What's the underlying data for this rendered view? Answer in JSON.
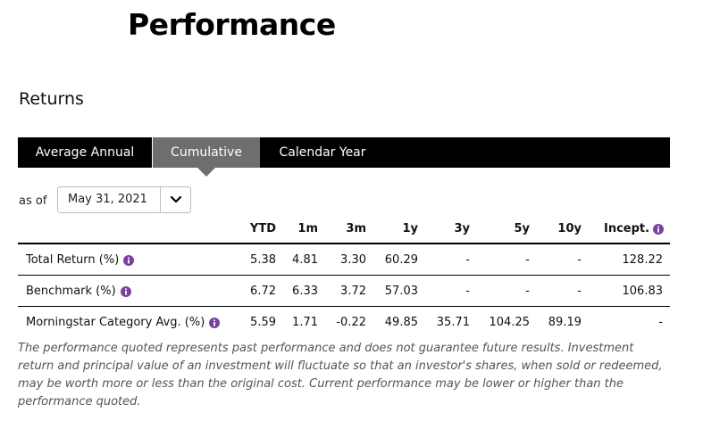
{
  "page": {
    "title": "Performance"
  },
  "section": {
    "title": "Returns"
  },
  "tabs": [
    {
      "label": "Average Annual",
      "active": false
    },
    {
      "label": "Cumulative",
      "active": true
    },
    {
      "label": "Calendar Year",
      "active": false
    }
  ],
  "as_of": {
    "label": "as of",
    "selected": "May 31, 2021",
    "icon": "chevron-down-icon"
  },
  "table": {
    "columns": [
      "YTD",
      "1m",
      "3m",
      "1y",
      "3y",
      "5y",
      "10y",
      "Incept."
    ],
    "rows": [
      {
        "label": "Total Return (%)",
        "values": [
          "5.38",
          "4.81",
          "3.30",
          "60.29",
          "-",
          "-",
          "-",
          "128.22"
        ]
      },
      {
        "label": "Benchmark (%)",
        "values": [
          "6.72",
          "6.33",
          "3.72",
          "57.03",
          "-",
          "-",
          "-",
          "106.83"
        ]
      },
      {
        "label": "Morningstar Category Avg. (%)",
        "values": [
          "5.59",
          "1.71",
          "-0.22",
          "49.85",
          "35.71",
          "104.25",
          "89.19",
          "-"
        ]
      }
    ]
  },
  "disclaimer": "The performance quoted represents past performance and does not guarantee future results. Investment return and principal value of an investment will fluctuate so that an investor's shares, when sold or redeemed, may be worth more or less than the original cost. Current performance may be lower or higher than the performance quoted.",
  "colors": {
    "tab_bar": "#000000",
    "active_tab": "#6e6e6e",
    "info_icon": "#7b3fa0"
  }
}
